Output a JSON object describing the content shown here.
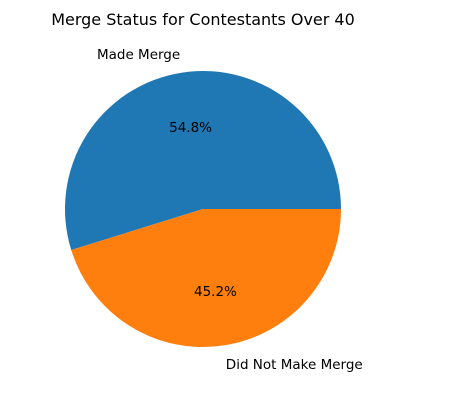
{
  "chart_data": {
    "type": "pie",
    "title": "Merge Status for Contestants Over 40",
    "slices": [
      {
        "label": "Made Merge",
        "value": 54.8,
        "pct_label": "54.8%",
        "color": "#1f77b4"
      },
      {
        "label": "Did Not Make Merge",
        "value": 45.2,
        "pct_label": "45.2%",
        "color": "#ff7f0e"
      }
    ],
    "start_angle_deg": 0,
    "direction": "counterclockwise"
  }
}
